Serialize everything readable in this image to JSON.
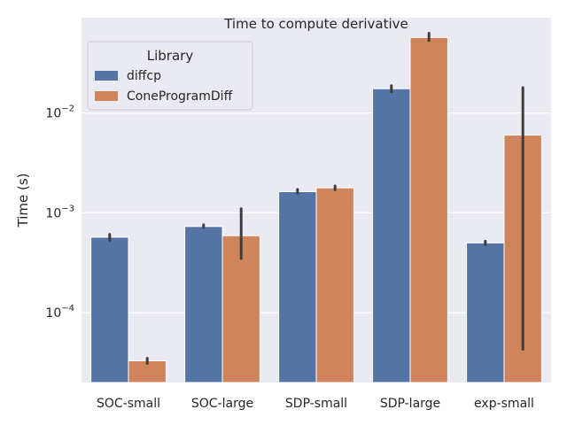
{
  "chart_data": {
    "type": "bar",
    "title": "Time to compute derivative",
    "xlabel": "",
    "ylabel": "Time (s)",
    "yscale": "log",
    "ylim": [
      2e-05,
      0.09
    ],
    "grid": true,
    "y_ticks": [
      {
        "value": 0.0001,
        "base": "10",
        "exp": "−4"
      },
      {
        "value": 0.001,
        "base": "10",
        "exp": "−3"
      },
      {
        "value": 0.01,
        "base": "10",
        "exp": "−2"
      }
    ],
    "categories": [
      "SOC-small",
      "SOC-large",
      "SDP-small",
      "SDP-large",
      "exp-small"
    ],
    "legend": {
      "title": "Library",
      "placement": "top-left"
    },
    "series": [
      {
        "name": "diffcp",
        "color": "#5574a6",
        "values": [
          0.00057,
          0.00073,
          0.00163,
          0.0175,
          0.0005
        ],
        "err_low": [
          0.00053,
          0.00071,
          0.00158,
          0.0163,
          0.00048
        ],
        "err_high": [
          0.00061,
          0.00076,
          0.00172,
          0.0188,
          0.00052
        ]
      },
      {
        "name": "ConeProgramDiff",
        "color": "#d0845c",
        "values": [
          3.3e-05,
          0.00059,
          0.00178,
          0.057,
          0.006
        ],
        "err_low": [
          3.1e-05,
          0.00035,
          0.0017,
          0.053,
          4.3e-05
        ],
        "err_high": [
          3.5e-05,
          0.0011,
          0.00186,
          0.063,
          0.018
        ]
      }
    ]
  }
}
